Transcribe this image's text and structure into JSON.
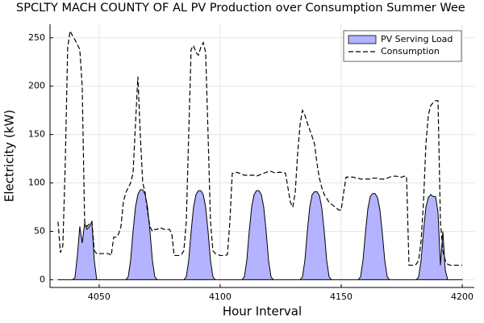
{
  "chart_data": {
    "type": "line",
    "title": "SPCLTY MACH COUNTY OF AL PV Production over Consumption Summer Wee",
    "xlabel": "Hour Interval",
    "ylabel": "Electricity (kW)",
    "x": [
      4033,
      4034,
      4035,
      4036,
      4037,
      4038,
      4039,
      4040,
      4041,
      4042,
      4043,
      4044,
      4045,
      4046,
      4047,
      4048,
      4049,
      4050,
      4051,
      4052,
      4053,
      4054,
      4055,
      4056,
      4057,
      4058,
      4059,
      4060,
      4061,
      4062,
      4063,
      4064,
      4065,
      4066,
      4067,
      4068,
      4069,
      4070,
      4071,
      4072,
      4073,
      4074,
      4075,
      4076,
      4077,
      4078,
      4079,
      4080,
      4081,
      4082,
      4083,
      4084,
      4085,
      4086,
      4087,
      4088,
      4089,
      4090,
      4091,
      4092,
      4093,
      4094,
      4095,
      4096,
      4097,
      4098,
      4099,
      4100,
      4101,
      4102,
      4103,
      4104,
      4105,
      4106,
      4107,
      4108,
      4109,
      4110,
      4111,
      4112,
      4113,
      4114,
      4115,
      4116,
      4117,
      4118,
      4119,
      4120,
      4121,
      4122,
      4123,
      4124,
      4125,
      4126,
      4127,
      4128,
      4129,
      4130,
      4131,
      4132,
      4133,
      4134,
      4135,
      4136,
      4137,
      4138,
      4139,
      4140,
      4141,
      4142,
      4143,
      4144,
      4145,
      4146,
      4147,
      4148,
      4149,
      4150,
      4151,
      4152,
      4153,
      4154,
      4155,
      4156,
      4157,
      4158,
      4159,
      4160,
      4161,
      4162,
      4163,
      4164,
      4165,
      4166,
      4167,
      4168,
      4169,
      4170,
      4171,
      4172,
      4173,
      4174,
      4175,
      4176,
      4177,
      4178,
      4179,
      4180,
      4181,
      4182,
      4183,
      4184,
      4185,
      4186,
      4187,
      4188,
      4189,
      4190,
      4191,
      4192,
      4193,
      4194,
      4195,
      4196,
      4197,
      4198,
      4199,
      4200
    ],
    "series": [
      {
        "name": "PV Serving Load",
        "color": "#b3b3ff",
        "fill": true,
        "values": [
          0,
          0,
          0,
          0,
          0,
          0,
          0,
          2,
          25,
          55,
          38,
          58,
          52,
          55,
          60,
          20,
          0,
          0,
          0,
          0,
          0,
          0,
          0,
          0,
          0,
          0,
          0,
          0,
          0,
          3,
          20,
          50,
          75,
          88,
          93,
          93,
          88,
          75,
          50,
          20,
          3,
          0,
          0,
          0,
          0,
          0,
          0,
          0,
          0,
          0,
          0,
          0,
          0,
          3,
          20,
          50,
          75,
          88,
          92,
          92,
          88,
          75,
          50,
          20,
          3,
          0,
          0,
          0,
          0,
          0,
          0,
          0,
          0,
          0,
          0,
          0,
          0,
          3,
          20,
          50,
          75,
          88,
          92,
          92,
          88,
          75,
          50,
          20,
          3,
          0,
          0,
          0,
          0,
          0,
          0,
          0,
          0,
          0,
          0,
          0,
          0,
          3,
          20,
          50,
          75,
          88,
          91,
          91,
          87,
          74,
          50,
          20,
          3,
          0,
          0,
          0,
          0,
          0,
          0,
          0,
          0,
          0,
          0,
          0,
          0,
          3,
          20,
          48,
          73,
          86,
          89,
          89,
          85,
          72,
          48,
          20,
          3,
          0,
          0,
          0,
          0,
          0,
          0,
          0,
          0,
          0,
          0,
          0,
          0,
          3,
          20,
          50,
          75,
          85,
          88,
          86,
          86,
          70,
          15,
          50,
          10,
          0,
          0,
          0,
          0,
          0,
          0,
          0
        ]
      },
      {
        "name": "Consumption",
        "color": "#000000",
        "dashed": true,
        "values": [
          60,
          28,
          35,
          120,
          240,
          257,
          252,
          248,
          243,
          238,
          200,
          60,
          55,
          58,
          60,
          30,
          27,
          27,
          27,
          27,
          27,
          27,
          25,
          44,
          44,
          47,
          55,
          80,
          90,
          95,
          100,
          110,
          160,
          210,
          150,
          100,
          90,
          70,
          55,
          50,
          52,
          52,
          54,
          53,
          52,
          52,
          52,
          48,
          25,
          25,
          25,
          26,
          30,
          60,
          150,
          238,
          242,
          235,
          232,
          240,
          245,
          235,
          150,
          60,
          30,
          27,
          26,
          25,
          25,
          25,
          26,
          60,
          110,
          110,
          111,
          110,
          109,
          108,
          108,
          108,
          108,
          108,
          107,
          108,
          109,
          110,
          111,
          112,
          112,
          111,
          110,
          111,
          111,
          111,
          110,
          95,
          80,
          75,
          90,
          130,
          160,
          175,
          170,
          162,
          155,
          148,
          140,
          120,
          105,
          95,
          88,
          84,
          80,
          78,
          76,
          74,
          72,
          72,
          90,
          106,
          106,
          106,
          106,
          105,
          105,
          104,
          104,
          104,
          104,
          104,
          105,
          105,
          105,
          104,
          104,
          104,
          105,
          106,
          107,
          107,
          107,
          106,
          106,
          107,
          107,
          15,
          15,
          15,
          16,
          20,
          40,
          80,
          140,
          170,
          180,
          183,
          185,
          185,
          60,
          30,
          20,
          16,
          15,
          15,
          15,
          15,
          15,
          15
        ]
      }
    ],
    "xlim": [
      4029.7,
      4205
    ],
    "ylim": [
      -8,
      264
    ],
    "xticks": [
      4050,
      4100,
      4150,
      4200
    ],
    "yticks": [
      0,
      50,
      100,
      150,
      200,
      250
    ],
    "grid": true,
    "legend": "top-right"
  }
}
